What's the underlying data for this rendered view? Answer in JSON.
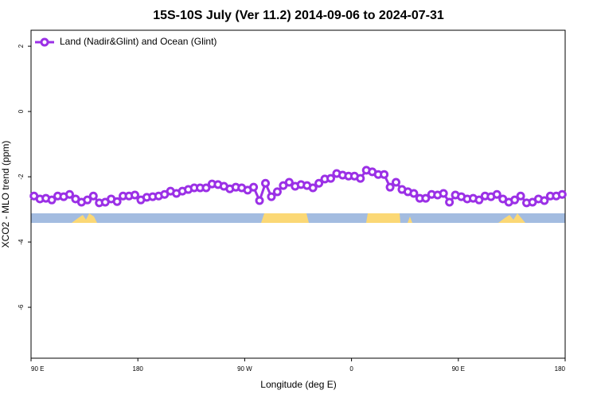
{
  "chart_data": {
    "type": "line",
    "title": "15S-10S July (Ver 11.2)   2014-09-06 to 2024-07-31",
    "xlabel": "Longitude (deg E)",
    "ylabel": "XCO2 - MLO trend (ppm)",
    "xlim": [
      90,
      540
    ],
    "xticks": [
      {
        "value": 90,
        "label": "90 E"
      },
      {
        "value": 180,
        "label": "180"
      },
      {
        "value": 270,
        "label": "90 W"
      },
      {
        "value": 360,
        "label": "0"
      },
      {
        "value": 450,
        "label": "90 E"
      },
      {
        "value": 540,
        "label": "180"
      }
    ],
    "ylim": [
      -7.56,
      2.49
    ],
    "yticks": [
      2,
      0,
      -2,
      -4,
      -6
    ],
    "legend": "top-left",
    "x": [
      92.5,
      97.5,
      102.5,
      107.5,
      112.5,
      117.5,
      122.5,
      127.5,
      132.5,
      137.5,
      142.5,
      147.5,
      152.5,
      157.5,
      162.5,
      167.5,
      172.5,
      177.5,
      182.5,
      187.5,
      192.5,
      197.5,
      202.5,
      207.5,
      212.5,
      217.5,
      222.5,
      227.5,
      232.5,
      237.5,
      242.5,
      247.5,
      252.5,
      257.5,
      262.5,
      267.5,
      272.5,
      277.5,
      282.5,
      287.5,
      292.5,
      297.5,
      302.5,
      307.5,
      312.5,
      317.5,
      322.5,
      327.5,
      332.5,
      337.5,
      342.5,
      347.5,
      352.5,
      357.5,
      362.5,
      367.5,
      372.5,
      377.5,
      382.5,
      387.5,
      392.5,
      397.5,
      402.5,
      407.5,
      412.5,
      417.5,
      422.5,
      427.5,
      432.5,
      437.5,
      442.5,
      447.5,
      452.5,
      457.5,
      462.5,
      467.5,
      472.5,
      477.5,
      482.5,
      487.5,
      492.5,
      497.5,
      502.5,
      507.5,
      512.5,
      517.5,
      522.5,
      527.5,
      532.5,
      537.5
    ],
    "series": [
      {
        "name": "Land (Nadir&Glint) and Ocean (Glint)",
        "color": "#9b30e6",
        "values": [
          -2.59,
          -2.68,
          -2.66,
          -2.71,
          -2.59,
          -2.61,
          -2.54,
          -2.68,
          -2.78,
          -2.71,
          -2.59,
          -2.8,
          -2.78,
          -2.68,
          -2.76,
          -2.59,
          -2.59,
          -2.56,
          -2.71,
          -2.63,
          -2.61,
          -2.59,
          -2.54,
          -2.44,
          -2.51,
          -2.44,
          -2.39,
          -2.34,
          -2.34,
          -2.34,
          -2.22,
          -2.24,
          -2.29,
          -2.37,
          -2.32,
          -2.34,
          -2.41,
          -2.32,
          -2.73,
          -2.2,
          -2.61,
          -2.46,
          -2.27,
          -2.17,
          -2.29,
          -2.24,
          -2.27,
          -2.34,
          -2.2,
          -2.07,
          -2.05,
          -1.9,
          -1.95,
          -1.98,
          -1.98,
          -2.05,
          -1.8,
          -1.85,
          -1.93,
          -1.93,
          -2.32,
          -2.17,
          -2.39,
          -2.46,
          -2.51,
          -2.66,
          -2.66,
          -2.54,
          -2.56,
          -2.51,
          -2.78,
          -2.56,
          -2.61,
          -2.68,
          -2.66,
          -2.71,
          -2.59,
          -2.61,
          -2.54,
          -2.68,
          -2.78,
          -2.71,
          -2.59,
          -2.8,
          -2.78,
          -2.68,
          -2.73,
          -2.59,
          -2.59,
          -2.54
        ]
      }
    ]
  }
}
